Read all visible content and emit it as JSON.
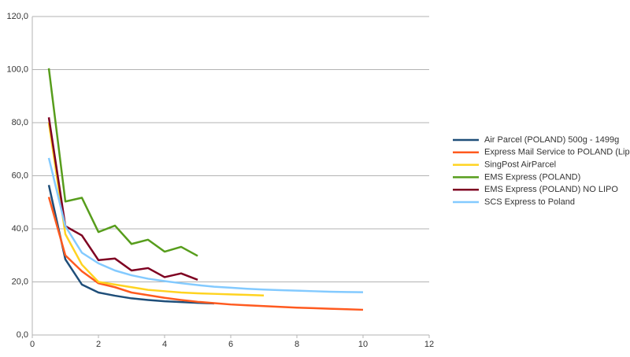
{
  "chart_data": {
    "type": "line",
    "xlim": [
      0,
      12
    ],
    "xticks": [
      0,
      2,
      4,
      6,
      8,
      10,
      12
    ],
    "ylim": [
      0,
      120
    ],
    "yticks": [
      {
        "value": 0,
        "label": "0,0"
      },
      {
        "value": 20,
        "label": "20,0"
      },
      {
        "value": 40,
        "label": "40,0"
      },
      {
        "value": 60,
        "label": "60,0"
      },
      {
        "value": 80,
        "label": "80,0"
      },
      {
        "value": 100,
        "label": "100,0"
      },
      {
        "value": 120,
        "label": "120,0"
      }
    ],
    "grid": true,
    "legend": "right",
    "series": [
      {
        "name": "Air Parcel (POLAND) 500g - 1499g",
        "color": "#1f4e79",
        "x": [
          0.5,
          1,
          1.5,
          2,
          2.5,
          3,
          3.5,
          4,
          4.5,
          5,
          5.5
        ],
        "values": [
          56.5,
          28.5,
          19,
          16,
          14.8,
          13.8,
          13.2,
          12.7,
          12.4,
          12.1,
          11.9
        ]
      },
      {
        "name": "Express Mail Service to POLAND (Lipo)",
        "color": "#ff5a1f",
        "x": [
          0.5,
          1,
          1.5,
          2,
          2.5,
          3,
          3.5,
          4,
          4.5,
          5,
          5.5,
          6,
          6.5,
          7,
          7.5,
          8,
          8.5,
          9,
          9.5,
          10
        ],
        "values": [
          52,
          30,
          24,
          19.5,
          18,
          16,
          15,
          14,
          13.2,
          12.5,
          12,
          11.5,
          11.2,
          10.9,
          10.6,
          10.3,
          10.1,
          9.9,
          9.7,
          9.5
        ]
      },
      {
        "name": "SingPost AirParcel",
        "color": "#ffd320",
        "x": [
          0.5,
          1,
          1.5,
          2,
          2.5,
          3,
          3.5,
          4,
          4.5,
          5,
          5.5,
          6,
          6.5,
          7
        ],
        "values": [
          80,
          38,
          26.5,
          20,
          19,
          18,
          17,
          16.5,
          16,
          15.7,
          15.5,
          15.3,
          15.1,
          14.9
        ]
      },
      {
        "name": "EMS Express (POLAND)",
        "color": "#579d1c",
        "x": [
          0.5,
          1,
          1.5,
          2,
          2.5,
          3,
          3.5,
          4,
          4.5,
          5
        ],
        "values": [
          100.5,
          50.3,
          51.7,
          38.8,
          41.2,
          34.3,
          35.9,
          31.4,
          33.2,
          29.8
        ]
      },
      {
        "name": "EMS Express (POLAND) NO LIPO",
        "color": "#7e0021",
        "x": [
          0.5,
          1,
          1.5,
          2,
          2.5,
          3,
          3.5,
          4,
          4.5,
          5
        ],
        "values": [
          82,
          41,
          37.5,
          28.2,
          28.8,
          24.3,
          25.2,
          21.8,
          23.2,
          20.8
        ]
      },
      {
        "name": "SCS Express to Poland",
        "color": "#83caff",
        "x": [
          0.5,
          1,
          1.5,
          2,
          2.5,
          3,
          3.5,
          4,
          4.5,
          5,
          5.5,
          6,
          6.5,
          7,
          7.5,
          8,
          8.5,
          9,
          9.5,
          10
        ],
        "values": [
          66.7,
          41,
          31,
          27,
          24.3,
          22.5,
          21.2,
          20.3,
          19.5,
          18.8,
          18.2,
          17.8,
          17.4,
          17.1,
          16.9,
          16.7,
          16.5,
          16.3,
          16.2,
          16.1
        ]
      }
    ]
  }
}
